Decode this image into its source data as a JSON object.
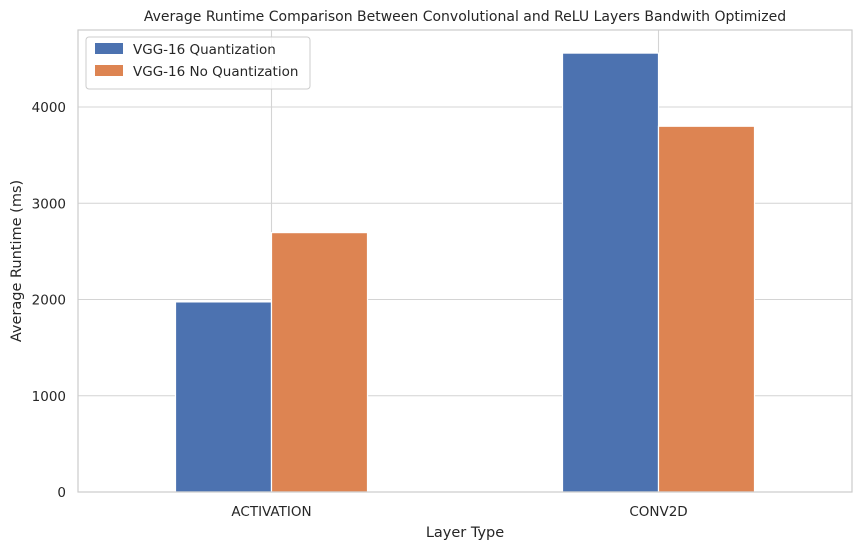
{
  "chart_data": {
    "type": "bar",
    "title": "Average Runtime Comparison Between Convolutional and ReLU Layers Bandwith Optimized",
    "xlabel": "Layer Type",
    "ylabel": "Average Runtime (ms)",
    "categories": [
      "ACTIVATION",
      "CONV2D"
    ],
    "series": [
      {
        "name": "VGG-16 Quantization",
        "color": "#4c72b0",
        "values": [
          1975,
          4560
        ]
      },
      {
        "name": "VGG-16 No Quantization",
        "color": "#dd8452",
        "values": [
          2695,
          3800
        ]
      }
    ],
    "ylim": [
      0,
      4800
    ],
    "yticks": [
      0,
      1000,
      2000,
      3000,
      4000
    ],
    "grid": true,
    "legend_position": "top-left"
  }
}
